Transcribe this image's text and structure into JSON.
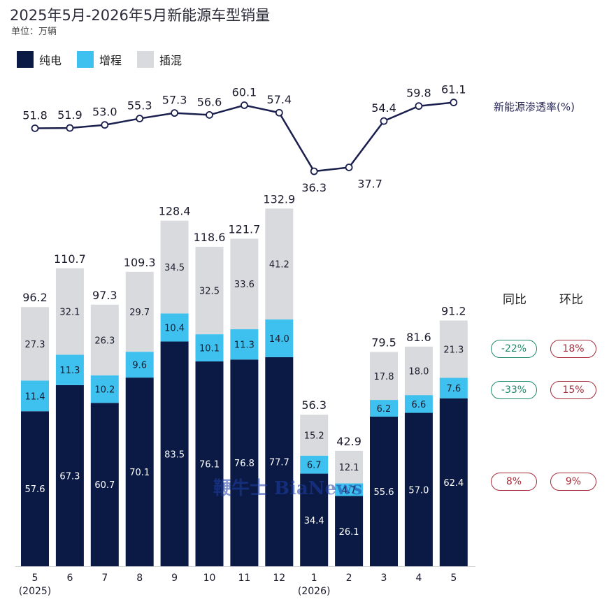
{
  "header": {
    "title": "2025年5月-2026年5月新能源车型销量",
    "unit": "单位：万辆"
  },
  "legend": [
    {
      "label": "纯电",
      "color": "#0b1a45"
    },
    {
      "label": "增程",
      "color": "#3ec1ee"
    },
    {
      "label": "插混",
      "color": "#d8dadd"
    }
  ],
  "rate_label": "新能源渗透率(%)",
  "comparison": {
    "yoy_label": "同比",
    "mom_label": "环比",
    "rows": [
      {
        "yoy": "-22%",
        "mom": "18%"
      },
      {
        "yoy": "-33%",
        "mom": "15%"
      },
      {
        "yoy": "8%",
        "mom": "9%"
      }
    ]
  },
  "watermark": "鞭牛士 BiaNews",
  "chart_data": {
    "type": "bar",
    "stacked": true,
    "categories": [
      "5",
      "6",
      "7",
      "8",
      "9",
      "10",
      "11",
      "12",
      "1",
      "2",
      "3",
      "4",
      "5"
    ],
    "year_labels": [
      "(2025)",
      "",
      "",
      "",
      "",
      "",
      "",
      "",
      "(2026)",
      "",
      "",
      "",
      ""
    ],
    "series": [
      {
        "name": "纯电",
        "values": [
          57.6,
          67.3,
          60.7,
          70.1,
          83.5,
          76.1,
          76.8,
          77.7,
          34.4,
          26.1,
          55.6,
          57.0,
          62.4
        ]
      },
      {
        "name": "增程",
        "values": [
          11.4,
          11.3,
          10.2,
          9.6,
          10.4,
          10.1,
          11.3,
          14.0,
          6.7,
          4.7,
          6.2,
          6.6,
          7.6
        ]
      },
      {
        "name": "插混",
        "values": [
          27.3,
          32.1,
          26.3,
          29.7,
          34.5,
          32.5,
          33.6,
          41.2,
          15.2,
          12.1,
          17.8,
          18.0,
          21.3
        ]
      }
    ],
    "totals": [
      "96.2",
      "110.7",
      "97.3",
      "109.3",
      "128.4",
      "118.6",
      "121.7",
      "132.9",
      "56.3",
      "42.9",
      "79.5",
      "81.6",
      "91.2"
    ],
    "penetration_rate": {
      "name": "新能源渗透率(%)",
      "values": [
        51.8,
        51.9,
        53.0,
        55.3,
        57.3,
        56.6,
        60.1,
        57.4,
        36.3,
        37.7,
        54.4,
        59.8,
        61.1
      ],
      "labels": [
        "51.8",
        "51.9",
        "53.0",
        "55.3",
        "57.3",
        "56.6",
        "60.1",
        "57.4",
        "36.3",
        "37.7",
        "54.4",
        "59.8",
        "61.1"
      ]
    }
  }
}
